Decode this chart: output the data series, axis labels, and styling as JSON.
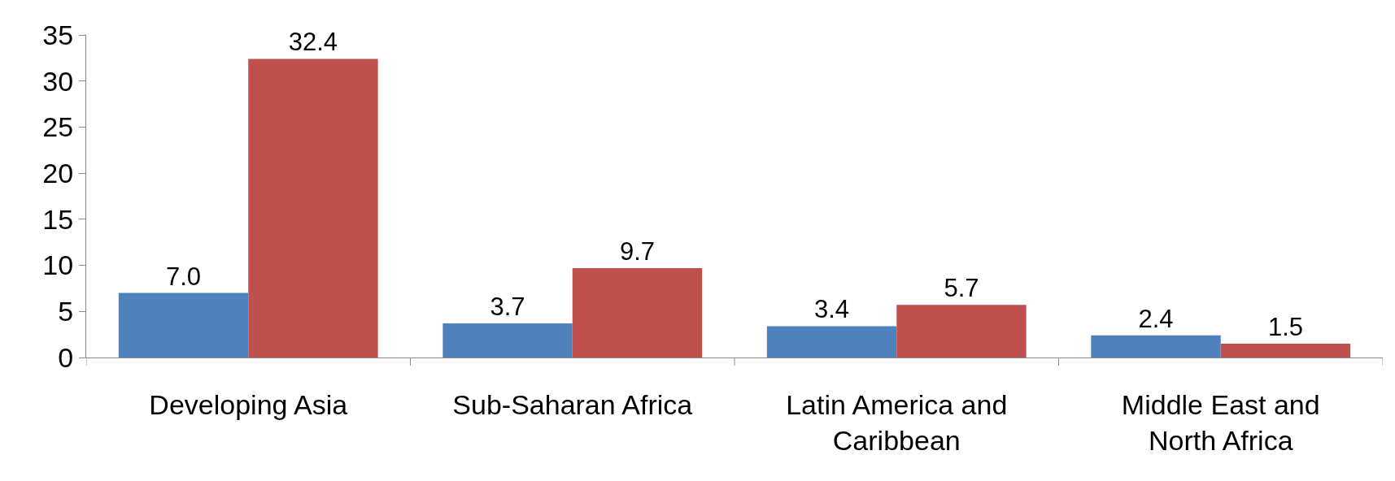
{
  "chart_data": {
    "type": "bar",
    "categories": [
      "Developing Asia",
      "Sub-Saharan Africa",
      "Latin America and Caribbean",
      "Middle East and North Africa"
    ],
    "series": [
      {
        "color": "#4f81bd",
        "values": [
          7.0,
          3.7,
          3.4,
          2.4
        ],
        "value_labels": [
          "7.0",
          "3.7",
          "3.4",
          "2.4"
        ]
      },
      {
        "color": "#c0504d",
        "values": [
          32.4,
          9.7,
          5.7,
          1.5
        ],
        "value_labels": [
          "32.4",
          "9.7",
          "5.7",
          "1.5"
        ]
      }
    ],
    "ylim": [
      0,
      35
    ],
    "yticks": [
      0,
      5,
      10,
      15,
      20,
      25,
      30,
      35
    ],
    "grid": false
  }
}
